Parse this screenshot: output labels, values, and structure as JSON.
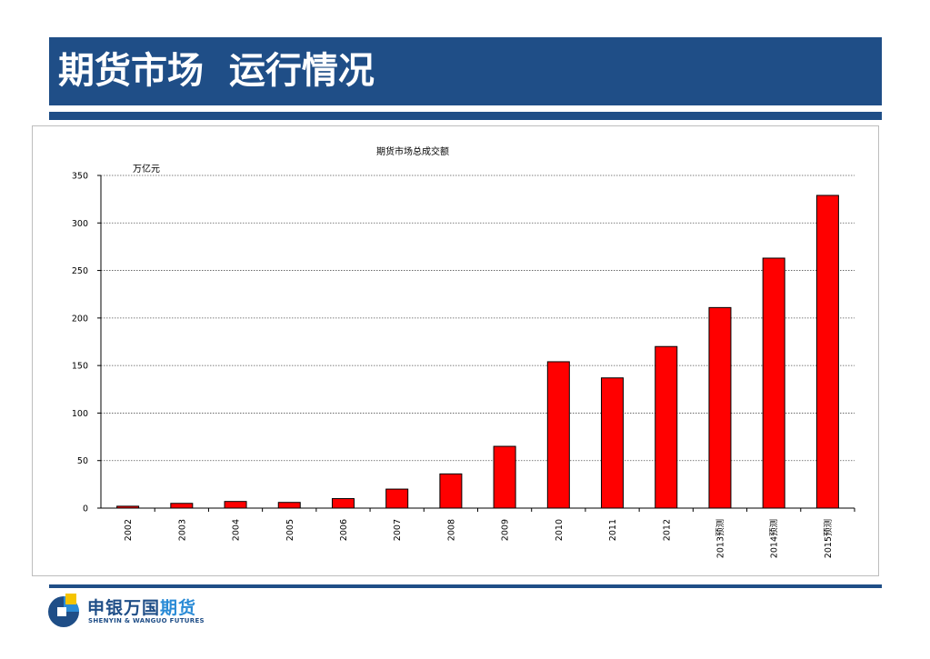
{
  "header": {
    "title": "期货市场  运行情况"
  },
  "logo": {
    "name_cn_main": "申银万国",
    "name_cn_highlight": "期货",
    "name_en": "SHENYIN & WANGUO FUTURES"
  },
  "colors": {
    "header_blue": "#1f4e87",
    "bar_red": "#ff0000",
    "logo_blue": "#2a8bd6",
    "logo_yellow": "#f5c400"
  },
  "chart_data": {
    "type": "bar",
    "title": "期货市场总成交额",
    "unit_label": "万亿元",
    "xlabel": "",
    "ylabel": "",
    "ylim": [
      0,
      350
    ],
    "yticks": [
      0,
      50,
      100,
      150,
      200,
      250,
      300,
      350
    ],
    "grid": true,
    "categories": [
      "2002",
      "2003",
      "2004",
      "2005",
      "2006",
      "2007",
      "2008",
      "2009",
      "2010",
      "2011",
      "2012",
      "2013预测",
      "2014预测",
      "2015预测"
    ],
    "values": [
      2,
      5,
      7,
      6,
      10,
      20,
      36,
      65,
      154,
      137,
      170,
      211,
      263,
      329
    ]
  }
}
